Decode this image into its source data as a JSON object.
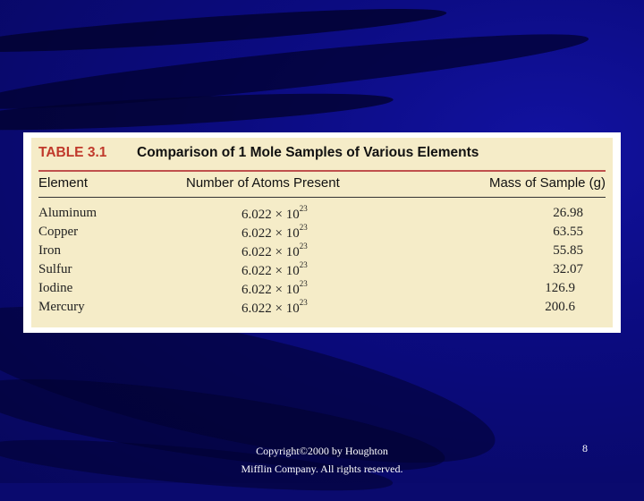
{
  "table": {
    "number": "TABLE 3.1",
    "title": "Comparison of 1 Mole Samples of Various Elements",
    "headers": [
      "Element",
      "Number of Atoms Present",
      "Mass of Sample (g)"
    ],
    "rows": [
      {
        "element": "Aluminum",
        "atoms_base": "6.022 × 10",
        "atoms_exp": "23",
        "mass": "26.98"
      },
      {
        "element": "Copper",
        "atoms_base": "6.022 × 10",
        "atoms_exp": "23",
        "mass": "63.55"
      },
      {
        "element": "Iron",
        "atoms_base": "6.022 × 10",
        "atoms_exp": "23",
        "mass": "55.85"
      },
      {
        "element": "Sulfur",
        "atoms_base": "6.022 × 10",
        "atoms_exp": "23",
        "mass": "32.07"
      },
      {
        "element": "Iodine",
        "atoms_base": "6.022 × 10",
        "atoms_exp": "23",
        "mass": "126.9"
      },
      {
        "element": "Mercury",
        "atoms_base": "6.022 × 10",
        "atoms_exp": "23",
        "mass": "200.6"
      }
    ]
  },
  "footer": {
    "copyright_line1": "Copyright©2000 by Houghton",
    "copyright_line2": "Mifflin Company. All rights reserved.",
    "page_number": "8"
  },
  "colors": {
    "background": "#0a0a6e",
    "table_bg": "#f5ecc8",
    "table_number": "#c0392b"
  }
}
